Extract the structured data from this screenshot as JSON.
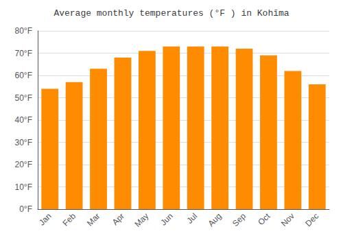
{
  "chart_data": {
    "type": "bar",
    "title": "Average monthly temperatures (°F ) in Kohīma",
    "categories": [
      "Jan",
      "Feb",
      "Mar",
      "Apr",
      "May",
      "Jun",
      "Jul",
      "Aug",
      "Sep",
      "Oct",
      "Nov",
      "Dec"
    ],
    "values": [
      54,
      57,
      63,
      68,
      71,
      73,
      73,
      73,
      72,
      69,
      62,
      56
    ],
    "color": "#FF8C00",
    "ylim": [
      0,
      80
    ],
    "yticks": [
      {
        "value": 0,
        "label": "0°F"
      },
      {
        "value": 10,
        "label": "10°F"
      },
      {
        "value": 20,
        "label": "20°F"
      },
      {
        "value": 30,
        "label": "30°F"
      },
      {
        "value": 40,
        "label": "40°F"
      },
      {
        "value": 50,
        "label": "50°F"
      },
      {
        "value": 60,
        "label": "60°F"
      },
      {
        "value": 70,
        "label": "70°F"
      },
      {
        "value": 80,
        "label": "80°F"
      }
    ],
    "grid": true
  }
}
